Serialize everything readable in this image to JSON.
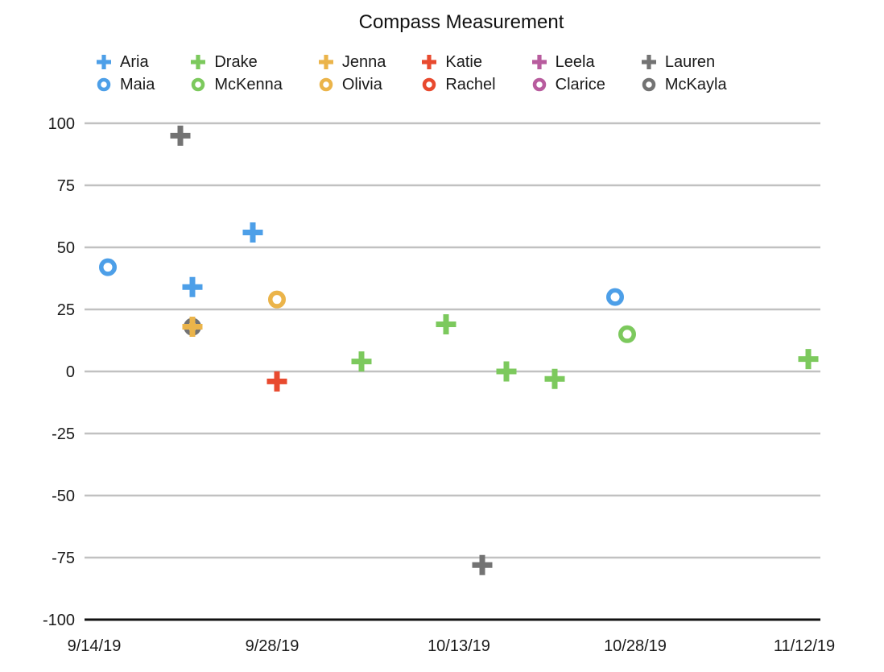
{
  "chart_data": {
    "type": "scatter",
    "title": "Compass Measurement",
    "xlabel": "",
    "ylabel": "",
    "x_ticks": [
      "9/14/19",
      "9/28/19",
      "10/13/19",
      "10/28/19",
      "11/12/19"
    ],
    "y_ticks": [
      100,
      75,
      50,
      25,
      0,
      -25,
      -50,
      -75,
      -100
    ],
    "ylim": [
      -100,
      100
    ],
    "grid": "horizontal-gridlines",
    "legend_position": "top",
    "legend_columns": [
      {
        "color": "#4D9FE8",
        "plus": "Aria",
        "circle": "Maia"
      },
      {
        "color": "#7CC95D",
        "plus": "Drake",
        "circle": "McKenna"
      },
      {
        "color": "#EBB44A",
        "plus": "Jenna",
        "circle": "Olivia"
      },
      {
        "color": "#E84A2F",
        "plus": "Katie",
        "circle": "Rachel"
      },
      {
        "color": "#B85C9E",
        "plus": "Leela",
        "circle": "Clarice"
      },
      {
        "color": "#737373",
        "plus": "Lauren",
        "circle": "McKayla"
      }
    ],
    "series": [
      {
        "name": "Maia",
        "marker": "circle",
        "color": "#4D9FE8",
        "points": [
          {
            "date": "9/15/19",
            "value": 42
          },
          {
            "date": "10/27/19",
            "value": 30
          }
        ]
      },
      {
        "name": "McKenna",
        "marker": "circle",
        "color": "#7CC95D",
        "points": [
          {
            "date": "10/28/19",
            "value": 15
          }
        ]
      },
      {
        "name": "Olivia",
        "marker": "circle",
        "color": "#EBB44A",
        "points": [
          {
            "date": "9/29/19",
            "value": 29
          }
        ]
      },
      {
        "name": "Rachel",
        "marker": "circle",
        "color": "#E84A2F",
        "points": []
      },
      {
        "name": "Clarice",
        "marker": "circle",
        "color": "#B85C9E",
        "points": []
      },
      {
        "name": "McKayla",
        "marker": "circle",
        "color": "#737373",
        "points": [
          {
            "date": "9/22/19",
            "value": 18
          }
        ]
      },
      {
        "name": "Aria",
        "marker": "plus",
        "color": "#4D9FE8",
        "points": [
          {
            "date": "9/22/19",
            "value": 34
          },
          {
            "date": "9/27/19",
            "value": 56
          }
        ]
      },
      {
        "name": "Drake",
        "marker": "plus",
        "color": "#7CC95D",
        "points": [
          {
            "date": "10/6/19",
            "value": 4
          },
          {
            "date": "10/13/19",
            "value": 19
          },
          {
            "date": "10/18/19",
            "value": 0
          },
          {
            "date": "10/22/19",
            "value": -3
          },
          {
            "date": "11/12/19",
            "value": 5
          }
        ]
      },
      {
        "name": "Jenna",
        "marker": "plus",
        "color": "#EBB44A",
        "points": [
          {
            "date": "9/22/19",
            "value": 18
          }
        ]
      },
      {
        "name": "Katie",
        "marker": "plus",
        "color": "#E84A2F",
        "points": [
          {
            "date": "9/29/19",
            "value": -4
          }
        ]
      },
      {
        "name": "Leela",
        "marker": "plus",
        "color": "#B85C9E",
        "points": []
      },
      {
        "name": "Lauren",
        "marker": "plus",
        "color": "#737373",
        "points": [
          {
            "date": "9/21/19",
            "value": 95
          },
          {
            "date": "10/16/19",
            "value": -78
          }
        ]
      }
    ],
    "colors": {
      "blue": "#4D9FE8",
      "green": "#7CC95D",
      "orange": "#EBB44A",
      "red": "#E84A2F",
      "purple": "#B85C9E",
      "gray": "#737373",
      "gridline": "#C1C1C1",
      "axis_line": "#111111",
      "text": "#1A1A1A"
    }
  }
}
